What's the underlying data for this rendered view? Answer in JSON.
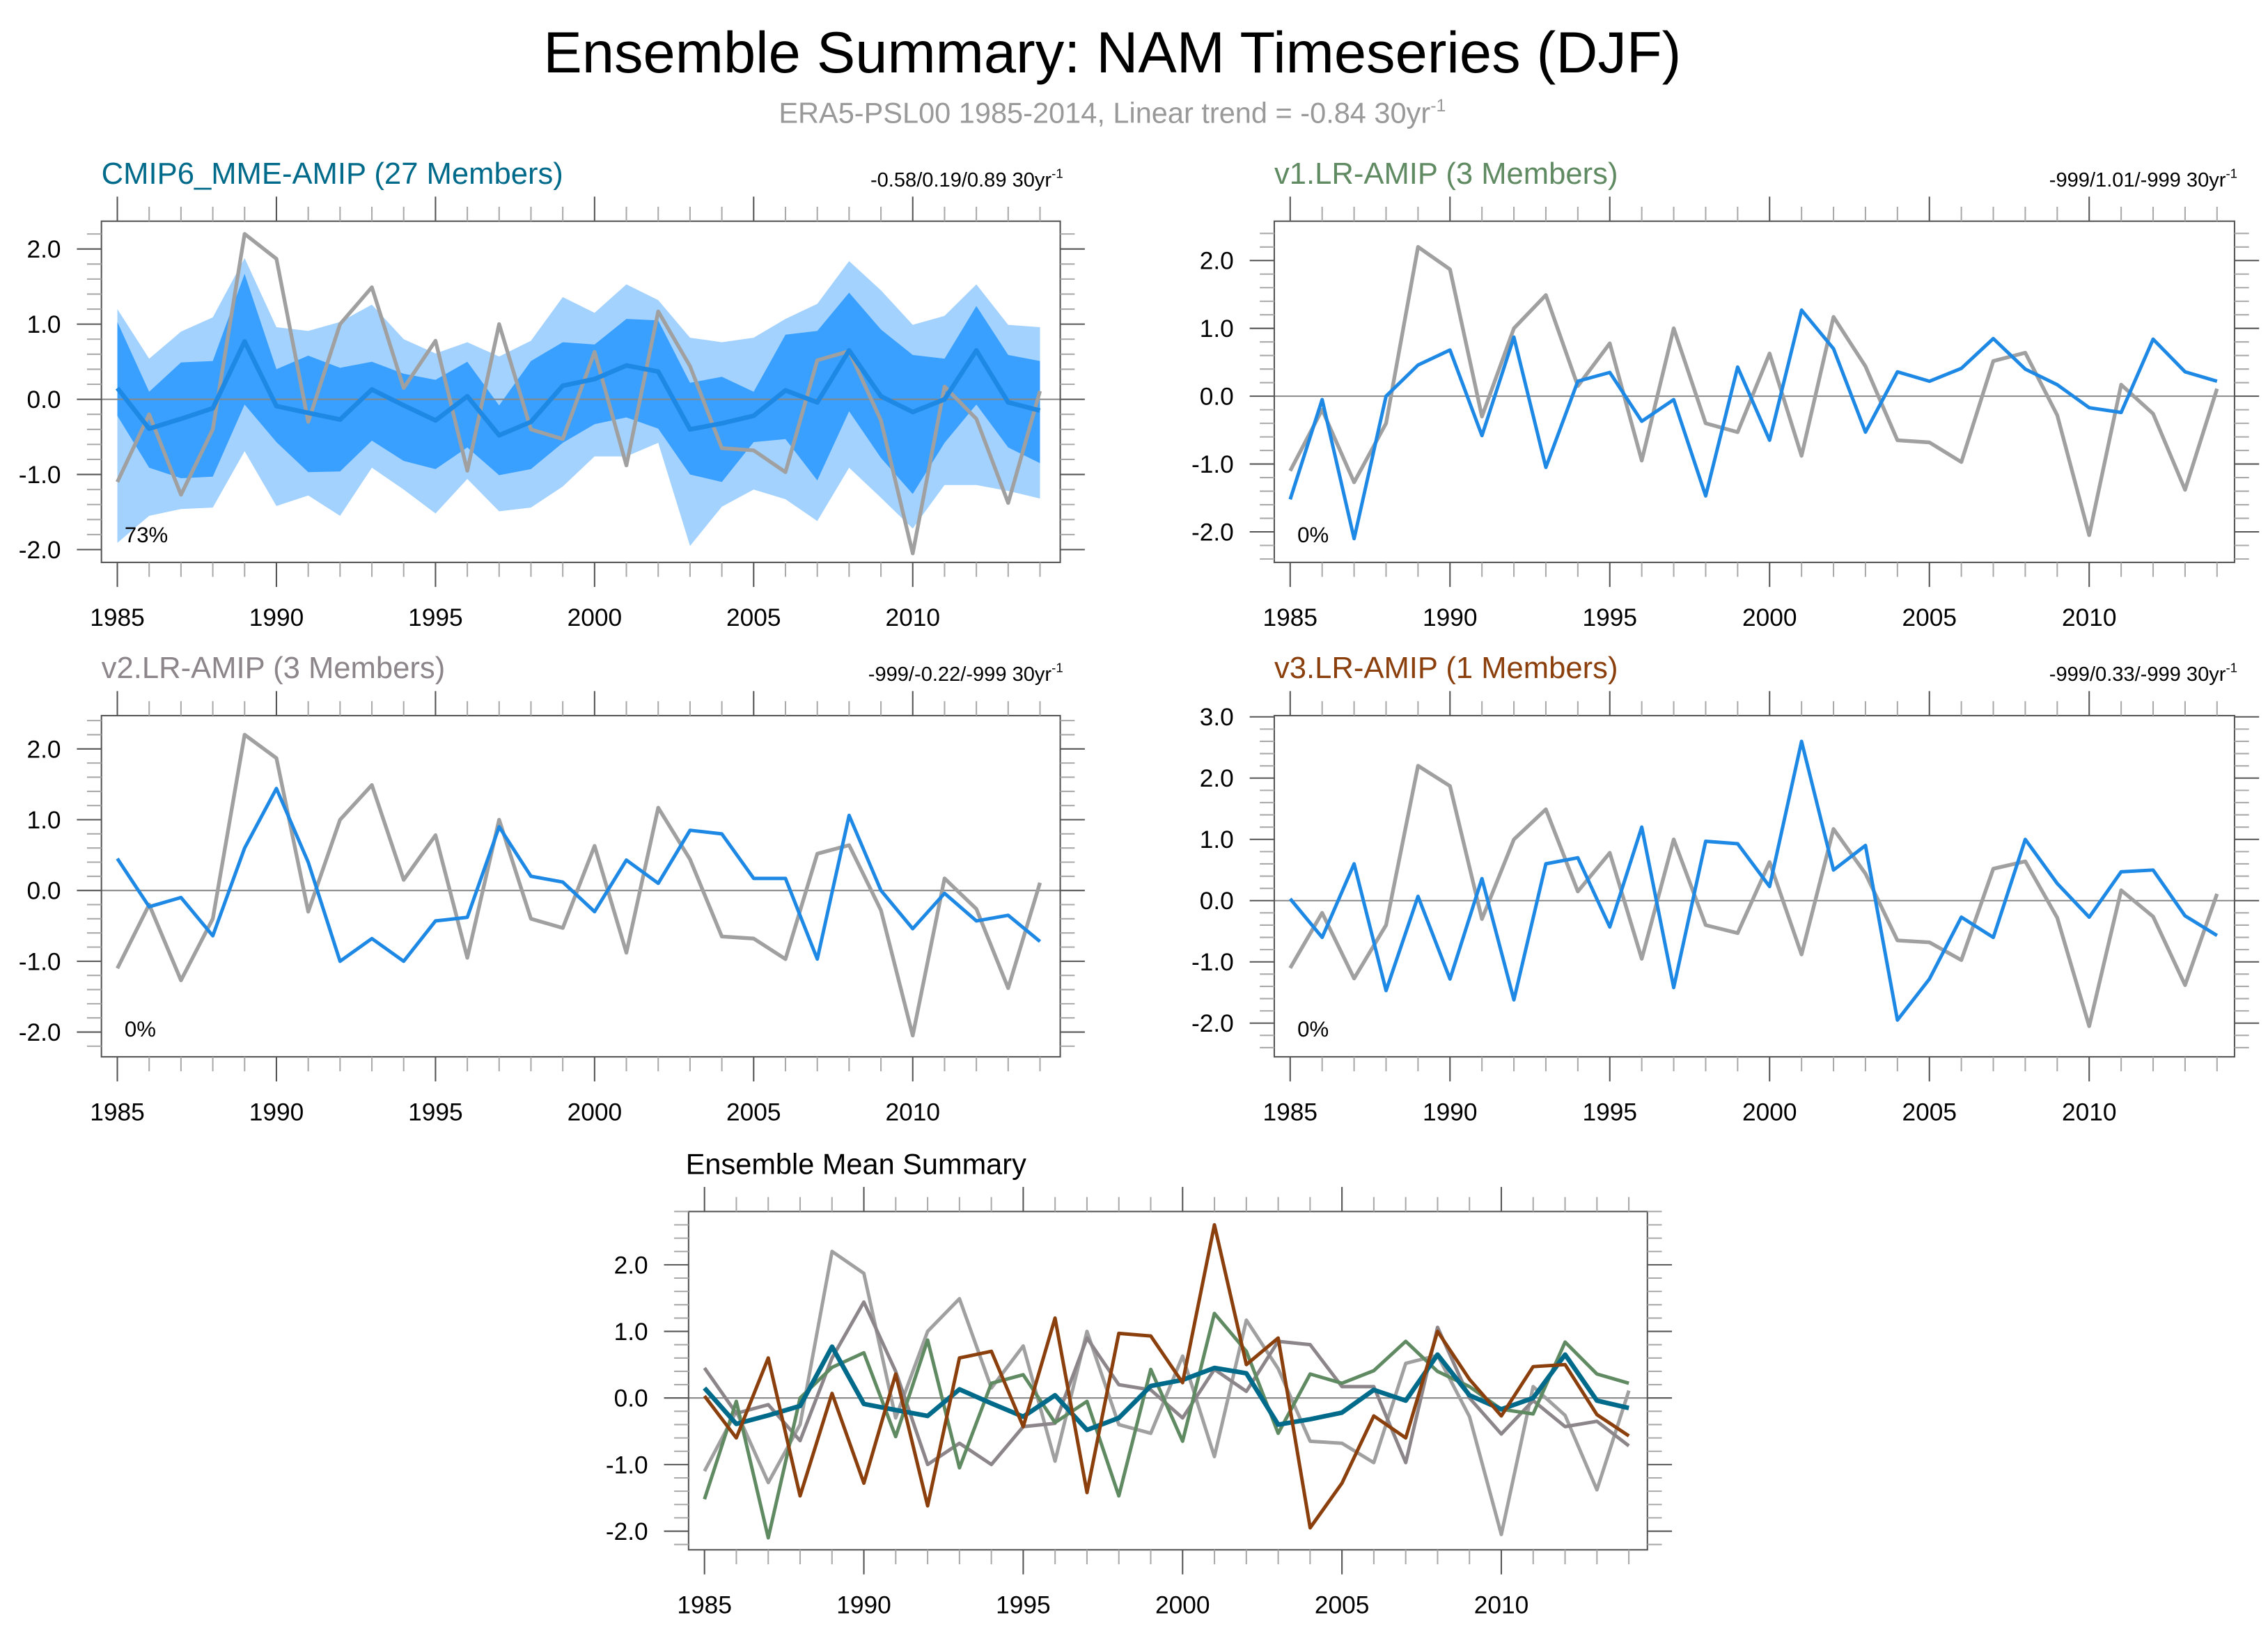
{
  "title": "Ensemble Summary: NAM Timeseries (DJF)",
  "subtitle": "ERA5-PSL00 1985-2014, Linear trend = -0.84 30yr",
  "subtitle_exp": "-1",
  "colors": {
    "obs": "#a0a0a0",
    "model_line": "#1e88e5",
    "band_inner": "#3aa0ff",
    "band_outer": "#a3d2ff",
    "mme": "#006a8a",
    "v1": "#5f8a62",
    "v2": "#8c8589",
    "v3": "#8b3f0c",
    "zero": "#888888"
  },
  "chart_data": [
    {
      "id": "mme",
      "type": "line",
      "title": "CMIP6_MME-AMIP (27 Members)",
      "title_color": "#006a8a",
      "trend": "-0.58/0.19/0.89 30yr",
      "trend_exp": "-1",
      "pct": "73%",
      "ylim": [
        -2.17,
        2.37
      ],
      "yticks": [
        "2.0",
        "1.0",
        "0.0",
        "-1.0",
        "-2.0"
      ],
      "ytick_values": [
        2,
        1,
        0,
        -1,
        -2
      ],
      "xticks": [
        "1985",
        "1990",
        "1995",
        "2000",
        "2005",
        "2010"
      ],
      "x_start": 1985,
      "mean": [
        0.15,
        -0.39,
        -0.26,
        -0.12,
        0.77,
        -0.09,
        -0.18,
        -0.27,
        0.13,
        -0.08,
        -0.28,
        0.04,
        -0.48,
        -0.3,
        0.18,
        0.27,
        0.45,
        0.37,
        -0.4,
        -0.32,
        -0.22,
        0.12,
        -0.04,
        0.65,
        0.04,
        -0.17,
        0.0,
        0.65,
        -0.04,
        -0.15
      ],
      "inner_upper": [
        1.03,
        0.1,
        0.49,
        0.51,
        1.67,
        0.4,
        0.58,
        0.42,
        0.5,
        0.34,
        0.26,
        0.5,
        -0.08,
        0.51,
        0.76,
        0.73,
        1.07,
        1.05,
        0.22,
        0.3,
        0.1,
        0.86,
        0.91,
        1.42,
        0.93,
        0.59,
        0.54,
        1.24,
        0.59,
        0.51
      ],
      "inner_lower": [
        -0.22,
        -0.91,
        -1.05,
        -1.03,
        -0.07,
        -0.57,
        -0.97,
        -0.96,
        -0.55,
        -0.82,
        -0.93,
        -0.64,
        -1.01,
        -0.93,
        -0.58,
        -0.33,
        -0.24,
        -0.39,
        -1.0,
        -1.1,
        -0.57,
        -0.53,
        -1.08,
        -0.16,
        -0.78,
        -1.26,
        -0.58,
        -0.07,
        -0.64,
        -0.85
      ],
      "outer_upper": [
        1.2,
        0.54,
        0.9,
        1.09,
        1.88,
        0.96,
        0.91,
        1.03,
        1.26,
        0.8,
        0.61,
        0.76,
        0.57,
        0.78,
        1.36,
        1.15,
        1.53,
        1.32,
        0.82,
        0.76,
        0.82,
        1.07,
        1.27,
        1.84,
        1.45,
        0.99,
        1.11,
        1.53,
        0.99,
        0.96
      ],
      "outer_lower": [
        -1.91,
        -1.55,
        -1.46,
        -1.44,
        -0.69,
        -1.42,
        -1.28,
        -1.55,
        -0.91,
        -1.2,
        -1.52,
        -1.06,
        -1.49,
        -1.44,
        -1.16,
        -0.76,
        -0.76,
        -0.58,
        -1.95,
        -1.43,
        -1.2,
        -1.33,
        -1.62,
        -0.91,
        -1.31,
        -1.72,
        -1.14,
        -1.14,
        -1.22,
        -1.32
      ]
    },
    {
      "id": "v1",
      "type": "line",
      "title": "v1.LR-AMIP (3 Members)",
      "title_color": "#5f8a62",
      "trend": "-999/1.01/-999 30yr",
      "trend_exp": "-1",
      "pct": "0%",
      "ylim": [
        -2.45,
        2.58
      ],
      "yticks": [
        "2.0",
        "1.0",
        "0.0",
        "-1.0",
        "-2.0"
      ],
      "ytick_values": [
        2,
        1,
        0,
        -1,
        -2
      ],
      "xticks": [
        "1985",
        "1990",
        "1995",
        "2000",
        "2005",
        "2010"
      ],
      "x_start": 1985,
      "mean": [
        -1.52,
        -0.05,
        -2.1,
        0.0,
        0.46,
        0.68,
        -0.58,
        0.87,
        -1.05,
        0.22,
        0.35,
        -0.37,
        -0.05,
        -1.47,
        0.43,
        -0.65,
        1.27,
        0.7,
        -0.53,
        0.36,
        0.22,
        0.41,
        0.85,
        0.4,
        0.17,
        -0.17,
        -0.24,
        0.84,
        0.36,
        0.22
      ]
    },
    {
      "id": "v2",
      "type": "line",
      "title": "v2.LR-AMIP (3 Members)",
      "title_color": "#8c8589",
      "trend": "-999/-0.22/-999 30yr",
      "trend_exp": "-1",
      "pct": "0%",
      "ylim": [
        -2.35,
        2.47
      ],
      "yticks": [
        "2.0",
        "1.0",
        "0.0",
        "-1.0",
        "-2.0"
      ],
      "ytick_values": [
        2,
        1,
        0,
        -1,
        -2
      ],
      "xticks": [
        "1985",
        "1990",
        "1995",
        "2000",
        "2005",
        "2010"
      ],
      "x_start": 1985,
      "mean": [
        0.45,
        -0.23,
        -0.1,
        -0.64,
        0.6,
        1.44,
        0.4,
        -1.0,
        -0.68,
        -1.0,
        -0.43,
        -0.38,
        0.9,
        0.2,
        0.12,
        -0.3,
        0.43,
        0.1,
        0.85,
        0.8,
        0.17,
        0.17,
        -0.97,
        1.06,
        0.0,
        -0.54,
        -0.04,
        -0.43,
        -0.35,
        -0.72
      ]
    },
    {
      "id": "v3",
      "type": "line",
      "title": "v3.LR-AMIP (1 Members)",
      "title_color": "#8b3f0c",
      "trend": "-999/0.33/-999 30yr",
      "trend_exp": "-1",
      "pct": "0%",
      "ylim": [
        -2.55,
        3.02
      ],
      "yticks": [
        "3.0",
        "2.0",
        "1.0",
        "0.0",
        "-1.0",
        "-2.0"
      ],
      "ytick_values": [
        3,
        2,
        1,
        0,
        -1,
        -2
      ],
      "xticks": [
        "1985",
        "1990",
        "1995",
        "2000",
        "2005",
        "2010"
      ],
      "x_start": 1985,
      "mean": [
        0.03,
        -0.6,
        0.6,
        -1.47,
        0.07,
        -1.28,
        0.36,
        -1.62,
        0.6,
        0.7,
        -0.43,
        1.2,
        -1.42,
        0.97,
        0.93,
        0.23,
        2.6,
        0.5,
        0.9,
        -1.95,
        -1.28,
        -0.27,
        -0.6,
        1.0,
        0.28,
        -0.27,
        0.47,
        0.5,
        -0.25,
        -0.57
      ]
    },
    {
      "id": "summary",
      "type": "line",
      "title": "Ensemble Mean Summary",
      "title_color": "#000000",
      "ylim": [
        -2.28,
        2.8
      ],
      "yticks": [
        "2.0",
        "1.0",
        "0.0",
        "-1.0",
        "-2.0"
      ],
      "ytick_values": [
        2,
        1,
        0,
        -1,
        -2
      ],
      "xticks": [
        "1985",
        "1990",
        "1995",
        "2000",
        "2005",
        "2010"
      ],
      "x_start": 1985,
      "series_order": [
        "obs",
        "v2",
        "v1",
        "mme",
        "v3"
      ]
    }
  ],
  "obs": [
    -1.1,
    -0.2,
    -1.27,
    -0.4,
    2.2,
    1.87,
    -0.3,
    1.0,
    1.49,
    0.15,
    0.78,
    -0.95,
    1.0,
    -0.4,
    -0.53,
    0.63,
    -0.88,
    1.17,
    0.44,
    -0.65,
    -0.68,
    -0.97,
    0.52,
    0.64,
    -0.28,
    -2.05,
    0.17,
    -0.26,
    -1.38,
    0.11
  ]
}
